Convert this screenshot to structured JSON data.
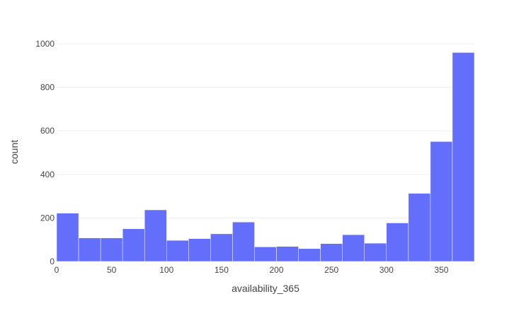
{
  "chart_data": {
    "type": "bar",
    "subtype": "histogram",
    "xlabel": "availability_365",
    "ylabel": "count",
    "bin_width": 20,
    "bins_start": [
      0,
      20,
      40,
      60,
      80,
      100,
      120,
      140,
      160,
      180,
      200,
      220,
      240,
      260,
      280,
      300,
      320,
      340,
      360
    ],
    "values": [
      222,
      108,
      108,
      150,
      237,
      97,
      105,
      127,
      181,
      67,
      69,
      59,
      82,
      123,
      84,
      177,
      313,
      551,
      960
    ],
    "xlim": [
      0,
      380
    ],
    "ylim": [
      0,
      1000
    ],
    "x_ticks": [
      0,
      50,
      100,
      150,
      200,
      250,
      300,
      350
    ],
    "y_ticks": [
      0,
      200,
      400,
      600,
      800,
      1000
    ],
    "grid": true,
    "bar_color": "#636efa",
    "bar_edge_color": "#ffffff"
  }
}
